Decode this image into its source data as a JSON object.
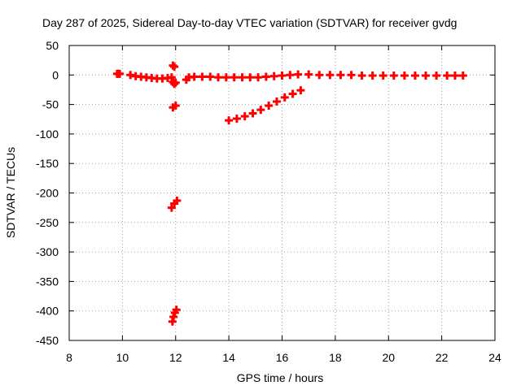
{
  "chart_data": {
    "type": "scatter",
    "title": "Day 287 of 2025, Sidereal Day-to-day VTEC variation (SDTVAR) for receiver gvdg",
    "xlabel": "GPS time / hours",
    "ylabel": "SDTVAR / TECUs",
    "xlim": [
      8,
      24
    ],
    "ylim": [
      -450,
      50
    ],
    "xticks": [
      8,
      10,
      12,
      14,
      16,
      18,
      20,
      22,
      24
    ],
    "yticks": [
      50,
      0,
      -50,
      -100,
      -150,
      -200,
      -250,
      -300,
      -350,
      -400,
      -450
    ],
    "grid": true,
    "marker": "plus",
    "series": [
      {
        "name": "SDTVAR",
        "color": "#ff0000",
        "points": [
          [
            9.8,
            2
          ],
          [
            9.85,
            2
          ],
          [
            9.9,
            2
          ],
          [
            10.3,
            0
          ],
          [
            10.5,
            -2
          ],
          [
            10.7,
            -3
          ],
          [
            10.9,
            -4
          ],
          [
            11.1,
            -5
          ],
          [
            11.3,
            -6
          ],
          [
            11.5,
            -6
          ],
          [
            11.7,
            -5
          ],
          [
            11.85,
            -4
          ],
          [
            11.9,
            16
          ],
          [
            11.95,
            14
          ],
          [
            11.9,
            -12
          ],
          [
            11.95,
            -15
          ],
          [
            12.0,
            -13
          ],
          [
            11.9,
            -55
          ],
          [
            12.0,
            -52
          ],
          [
            11.85,
            -225
          ],
          [
            11.95,
            -218
          ],
          [
            12.05,
            -213
          ],
          [
            11.88,
            -418
          ],
          [
            11.92,
            -410
          ],
          [
            11.97,
            -403
          ],
          [
            12.03,
            -398
          ],
          [
            12.4,
            -8
          ],
          [
            12.5,
            -4
          ],
          [
            12.7,
            -3
          ],
          [
            13.0,
            -3
          ],
          [
            13.3,
            -3
          ],
          [
            13.6,
            -4
          ],
          [
            13.9,
            -4
          ],
          [
            14.2,
            -4
          ],
          [
            14.5,
            -4
          ],
          [
            14.8,
            -4
          ],
          [
            15.1,
            -4
          ],
          [
            15.4,
            -3
          ],
          [
            15.7,
            -2
          ],
          [
            16.0,
            -1
          ],
          [
            16.3,
            0
          ],
          [
            16.6,
            1
          ],
          [
            17.0,
            1
          ],
          [
            17.4,
            0
          ],
          [
            17.8,
            0
          ],
          [
            18.2,
            0
          ],
          [
            18.6,
            0
          ],
          [
            19.0,
            -1
          ],
          [
            19.4,
            -1
          ],
          [
            19.8,
            -1
          ],
          [
            20.2,
            -1
          ],
          [
            20.6,
            -1
          ],
          [
            21.0,
            -1
          ],
          [
            21.4,
            -1
          ],
          [
            21.8,
            -1
          ],
          [
            22.2,
            -1
          ],
          [
            22.5,
            -1
          ],
          [
            22.8,
            -1
          ],
          [
            14.0,
            -77
          ],
          [
            14.3,
            -74
          ],
          [
            14.6,
            -70
          ],
          [
            14.9,
            -65
          ],
          [
            15.2,
            -59
          ],
          [
            15.5,
            -52
          ],
          [
            15.8,
            -45
          ],
          [
            16.1,
            -38
          ],
          [
            16.4,
            -32
          ],
          [
            16.7,
            -26
          ]
        ]
      }
    ]
  }
}
